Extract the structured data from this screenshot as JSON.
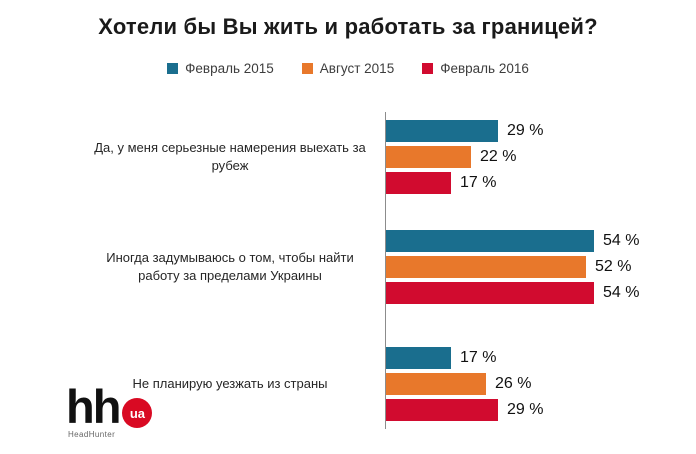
{
  "title": "Хотели бы Вы жить и работать за границей?",
  "colors": {
    "feb2015": "#1a6e8e",
    "aug2015": "#e8782b",
    "feb2016": "#d10b2f",
    "axis": "#8c8c8c",
    "logo_badge": "#d90a23"
  },
  "chart_data": {
    "type": "bar",
    "orientation": "horizontal",
    "title": "Хотели бы Вы жить и работать за границей?",
    "unit": "%",
    "categories": [
      "Да, у меня серьезные намерения выехать за\nрубеж",
      "Иногда задумываюсь о том, чтобы найти\nработу за пределами Украины",
      "Не планирую уезжать из страны"
    ],
    "series": [
      {
        "name": "Февраль 2015",
        "color": "#1a6e8e",
        "values": [
          29,
          54,
          17
        ]
      },
      {
        "name": "Август 2015",
        "color": "#e8782b",
        "values": [
          22,
          52,
          26
        ]
      },
      {
        "name": "Февраль 2016",
        "color": "#d10b2f",
        "values": [
          17,
          54,
          29
        ]
      }
    ],
    "value_label_format": "{v} %",
    "xlim": [
      0,
      60
    ],
    "grid": false,
    "legend_position": "top"
  },
  "logo": {
    "text": "hh",
    "badge": "ua",
    "subtext": "HeadHunter"
  }
}
